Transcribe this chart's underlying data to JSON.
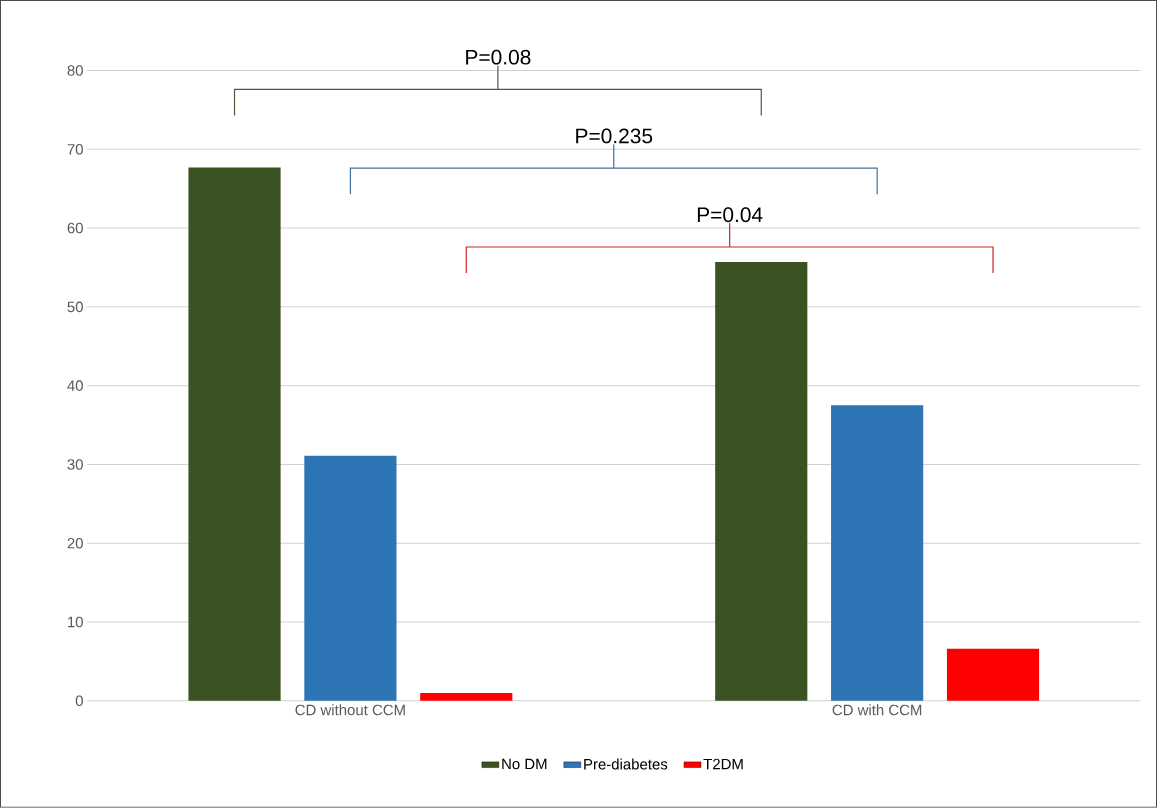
{
  "chart_data": {
    "type": "bar",
    "categories": [
      "CD without CCM",
      "CD with CCM"
    ],
    "series": [
      {
        "name": "No DM",
        "color": "#3b5323",
        "values": [
          67.7,
          55.7
        ]
      },
      {
        "name": "Pre-diabetes",
        "color": "#2e75b6",
        "values": [
          31.1,
          37.5
        ]
      },
      {
        "name": "T2DM",
        "color": "#ff0000",
        "values": [
          1.0,
          6.6
        ]
      }
    ],
    "ylim": [
      0,
      80
    ],
    "yticks": [
      0,
      10,
      20,
      30,
      40,
      50,
      60,
      70,
      80
    ],
    "grid": "y",
    "legend": "bottom",
    "annotations": [
      "P=0.08",
      "P=0.235",
      "P=0.04"
    ]
  }
}
